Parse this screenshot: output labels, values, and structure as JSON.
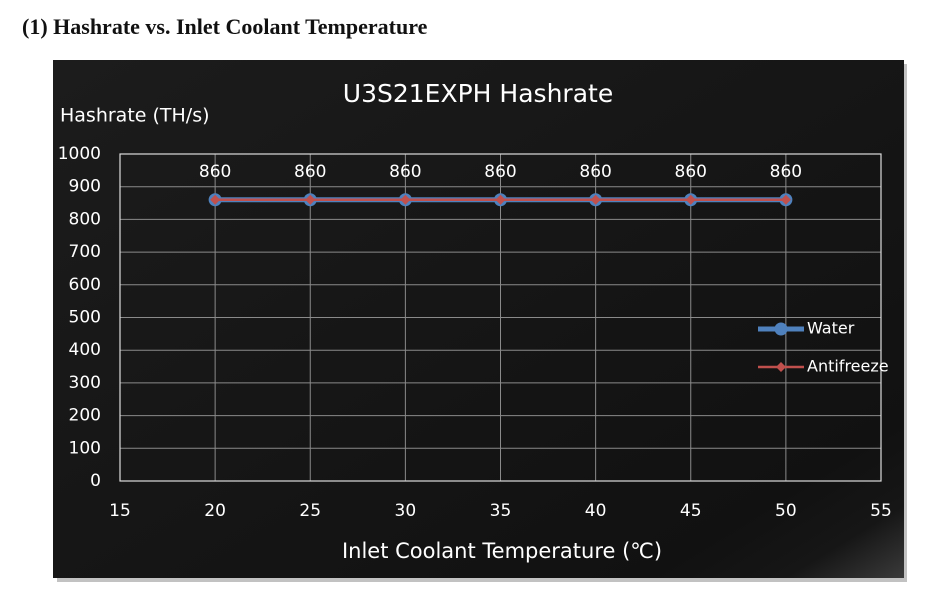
{
  "heading": "(1)  Hashrate vs. Inlet Coolant Temperature",
  "chart_data": {
    "type": "line",
    "title": "U3S21EXPH Hashrate",
    "y_label": "Hashrate (TH/s)",
    "x_label": "Inlet Coolant Temperature (℃)",
    "x": [
      20,
      25,
      30,
      35,
      40,
      45,
      50
    ],
    "series": [
      {
        "name": "Water",
        "color": "#4f81bd",
        "marker": "circle",
        "values": [
          860,
          860,
          860,
          860,
          860,
          860,
          860
        ]
      },
      {
        "name": "Antifreeze",
        "color": "#c0504d",
        "marker": "diamond",
        "values": [
          860,
          860,
          860,
          860,
          860,
          860,
          860
        ]
      }
    ],
    "xlim": [
      15,
      55
    ],
    "xticks": [
      15,
      20,
      25,
      30,
      35,
      40,
      45,
      50,
      55
    ],
    "ylim": [
      0,
      1000
    ],
    "yticks": [
      0,
      100,
      200,
      300,
      400,
      500,
      600,
      700,
      800,
      900,
      1000
    ],
    "grid": true,
    "legend": "right"
  }
}
